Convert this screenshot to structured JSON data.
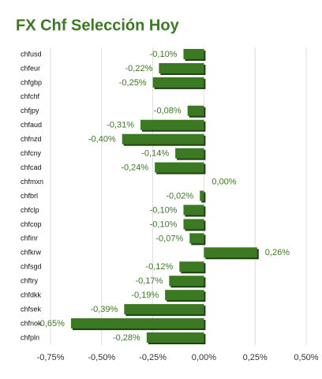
{
  "chart_data": {
    "type": "hbar",
    "title": "FX Chf Selección Hoy",
    "categories": [
      "chfusd",
      "chfeur",
      "chfgbp",
      "chfchf",
      "chfjpy",
      "chfaud",
      "chfnzd",
      "chfcny",
      "chfcad",
      "chfmxn",
      "chfbrl",
      "chfclp",
      "chfcop",
      "chfinr",
      "chfkrw",
      "chfsgd",
      "chftry",
      "chfdkk",
      "chfsek",
      "chfnok",
      "chfpln"
    ],
    "values": [
      -0.1,
      -0.22,
      -0.25,
      null,
      -0.08,
      -0.31,
      -0.4,
      -0.14,
      -0.24,
      0.0,
      -0.02,
      -0.1,
      -0.1,
      -0.07,
      0.26,
      -0.12,
      -0.17,
      -0.19,
      -0.39,
      -0.65,
      -0.28
    ],
    "value_labels": [
      "-0,10%",
      "-0,22%",
      "-0,25%",
      null,
      "-0,08%",
      "-0,31%",
      "-0,40%",
      "-0,14%",
      "-0,24%",
      "0,00%",
      "-0,02%",
      "-0,10%",
      "-0,10%",
      "-0,07%",
      "0,26%",
      "-0,12%",
      "-0,17%",
      "-0,19%",
      "-0,39%",
      "-0,65%",
      "-0,28%"
    ],
    "color": "#3b7a22",
    "xlim": [
      -0.75,
      0.5
    ],
    "xticks": [
      {
        "value": -0.75,
        "label": "-0,75%"
      },
      {
        "value": -0.5,
        "label": "-0,50%"
      },
      {
        "value": -0.25,
        "label": "-0,25%"
      },
      {
        "value": 0,
        "label": "0,00%"
      },
      {
        "value": 0.25,
        "label": "0,25%"
      },
      {
        "value": 0.5,
        "label": "0,50%"
      }
    ],
    "grid": true
  }
}
